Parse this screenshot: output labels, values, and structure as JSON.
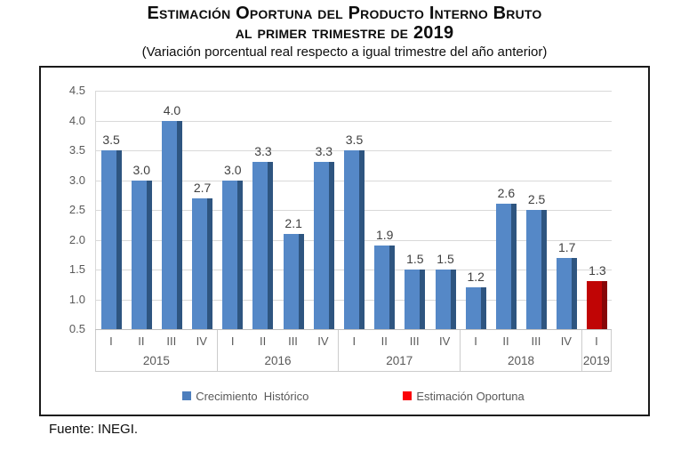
{
  "header": {
    "title_line1": "Estimación Oportuna del Producto Interno Bruto",
    "title_line2": "al primer trimestre de 2019",
    "subtitle": "(Variación porcentual real respecto a igual trimestre del año anterior)"
  },
  "chart_data": {
    "type": "bar",
    "title": "Estimación Oportuna del Producto Interno Bruto al primer trimestre de 2019",
    "subtitle": "(Variación porcentual real respecto a igual trimestre del año anterior)",
    "ylim": [
      0.5,
      4.5
    ],
    "y_step": 0.5,
    "grid": true,
    "legend_position": "bottom",
    "value_decimals": 1,
    "groups": [
      {
        "year": "2015",
        "quarters": [
          "I",
          "II",
          "III",
          "IV"
        ],
        "values": [
          3.5,
          3.0,
          4.0,
          2.7
        ],
        "series": "historico"
      },
      {
        "year": "2016",
        "quarters": [
          "I",
          "II",
          "III",
          "IV"
        ],
        "values": [
          3.0,
          3.3,
          2.1,
          3.3
        ],
        "series": "historico"
      },
      {
        "year": "2017",
        "quarters": [
          "I",
          "II",
          "III",
          "IV"
        ],
        "values": [
          3.5,
          1.9,
          1.5,
          1.5
        ],
        "series": "historico"
      },
      {
        "year": "2018",
        "quarters": [
          "I",
          "II",
          "III",
          "IV"
        ],
        "values": [
          1.2,
          2.6,
          2.5,
          1.7
        ],
        "series": "historico"
      },
      {
        "year": "2019",
        "quarters": [
          "I"
        ],
        "values": [
          1.3
        ],
        "series": "oportuna"
      }
    ],
    "series_colors": {
      "historico": {
        "fill": "#5588c7",
        "edge": "#2e5580"
      },
      "oportuna": {
        "fill": "#c00505",
        "edge": "#870607"
      }
    },
    "legend": [
      {
        "label": "Crecimiento  Histórico",
        "color": "#4d7ebd",
        "series": "historico"
      },
      {
        "label": "Estimación Oportuna",
        "color": "#fb0207",
        "series": "oportuna"
      }
    ]
  },
  "footer": {
    "source": "Fuente: INEGI."
  }
}
